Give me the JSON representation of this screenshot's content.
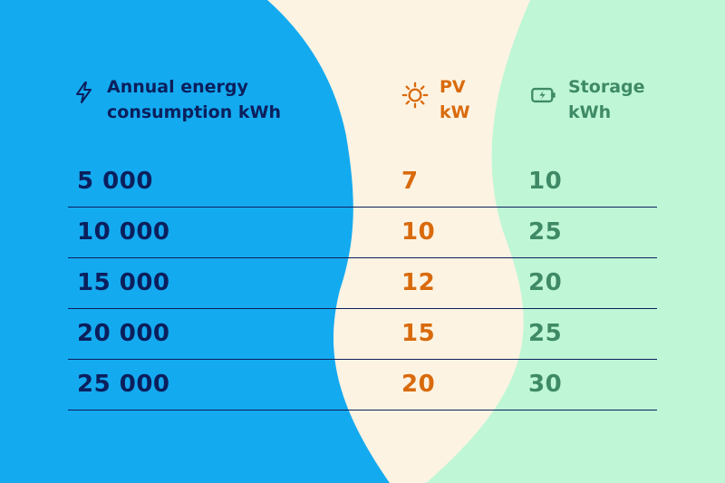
{
  "header": {
    "energy": {
      "line1": "Annual energy",
      "line2": "consumption kWh",
      "icon": "lightning-icon"
    },
    "pv": {
      "line1": "PV",
      "line2": "kW",
      "icon": "sun-icon"
    },
    "storage": {
      "line1": "Storage",
      "line2": "kWh",
      "icon": "battery-icon"
    }
  },
  "rows": [
    {
      "energy": "5 000",
      "pv": "7",
      "storage": "10"
    },
    {
      "energy": "10 000",
      "pv": "10",
      "storage": "25"
    },
    {
      "energy": "15 000",
      "pv": "12",
      "storage": "20"
    },
    {
      "energy": "20 000",
      "pv": "15",
      "storage": "25"
    },
    {
      "energy": "25 000",
      "pv": "20",
      "storage": "30"
    }
  ],
  "colors": {
    "blue_panel": "#14aaf0",
    "cream_panel": "#fdf3e2",
    "green_panel": "#bff7d6",
    "navy_text": "#0b1f5c",
    "orange_text": "#d96a0c",
    "green_text": "#3f8a66"
  }
}
